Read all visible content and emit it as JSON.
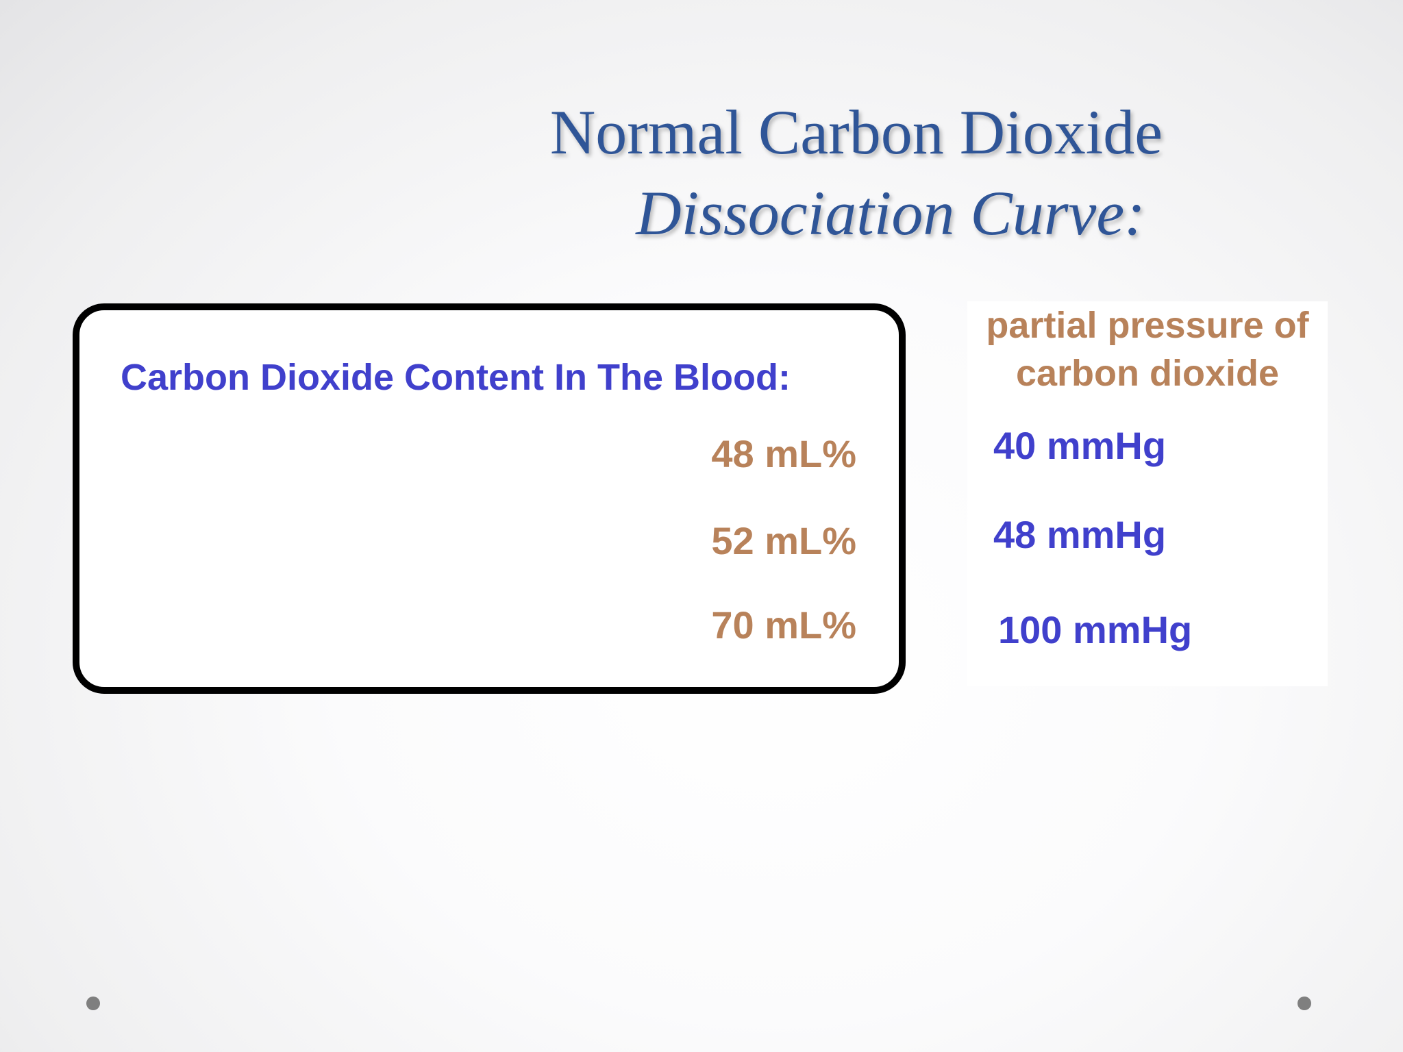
{
  "title": {
    "line1": "Normal Carbon Dioxide",
    "line2": "Dissociation Curve:"
  },
  "content_box": {
    "heading": "Carbon Dioxide Content In The Blood:",
    "values": [
      "48 mL%",
      "52 mL%",
      "70 mL%"
    ]
  },
  "pressure_panel": {
    "heading_line1": "partial pressure of",
    "heading_line2": "carbon dioxide",
    "values": [
      "40 mmHg",
      "48 mmHg",
      "100 mmHg"
    ]
  },
  "colors": {
    "title": "#2f5597",
    "blue_text": "#4040cc",
    "tan_text": "#b8825a",
    "nav_dot": "#7f7f7f"
  }
}
